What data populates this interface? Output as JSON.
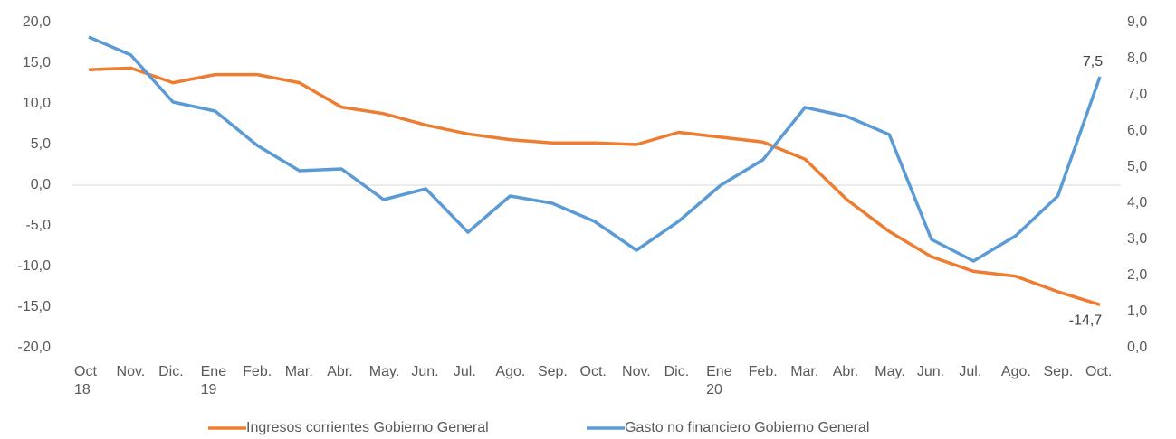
{
  "chart_data": {
    "type": "line",
    "categories": [
      "Oct\n18",
      "Nov.",
      "Dic.",
      "Ene\n19",
      "Feb.",
      "Mar.",
      "Abr.",
      "May.",
      "Jun.",
      "Jul.",
      "Ago.",
      "Sep.",
      "Oct.",
      "Nov.",
      "Dic.",
      "Ene\n20",
      "Feb.",
      "Mar.",
      "Abr.",
      "May.",
      "Jun.",
      "Jul.",
      "Ago.",
      "Sep.",
      "Oct."
    ],
    "series": [
      {
        "name": "Ingresos corrientes Gobierno General",
        "color": "#ed7d31",
        "values": [
          14.2,
          14.4,
          12.6,
          13.6,
          13.6,
          12.6,
          9.6,
          8.8,
          7.4,
          6.3,
          5.6,
          5.2,
          5.2,
          5.0,
          6.5,
          5.9,
          5.3,
          3.2,
          -1.8,
          -5.7,
          -8.8,
          -10.6,
          -11.2,
          -13.1,
          -14.7
        ],
        "value_labels": [
          null,
          null,
          null,
          null,
          null,
          null,
          null,
          null,
          null,
          null,
          null,
          null,
          null,
          null,
          null,
          null,
          null,
          null,
          null,
          null,
          null,
          null,
          null,
          null,
          "-14,7"
        ]
      },
      {
        "name": "Gasto no financiero Gobierno General",
        "color": "#5b9bd5",
        "axis": "y2",
        "values": [
          8.6,
          8.1,
          6.8,
          6.55,
          5.6,
          4.9,
          4.95,
          4.1,
          4.4,
          3.2,
          4.2,
          4.0,
          3.5,
          2.7,
          3.5,
          4.5,
          5.2,
          6.65,
          6.4,
          5.9,
          3.0,
          2.4,
          3.1,
          4.2,
          7.5
        ],
        "value_labels": [
          null,
          null,
          null,
          null,
          null,
          null,
          null,
          null,
          null,
          null,
          null,
          null,
          null,
          null,
          null,
          null,
          null,
          null,
          null,
          null,
          null,
          null,
          null,
          null,
          "7,5"
        ]
      }
    ],
    "ylim": [
      -20,
      20
    ],
    "yticks": [
      {
        "value": -20,
        "label": "-20,0"
      },
      {
        "value": -15,
        "label": "-15,0"
      },
      {
        "value": -10,
        "label": "-10,0"
      },
      {
        "value": -5,
        "label": "-5,0"
      },
      {
        "value": 0,
        "label": "0,0"
      },
      {
        "value": 5,
        "label": "5,0"
      },
      {
        "value": 10,
        "label": "10,0"
      },
      {
        "value": 15,
        "label": "15,0"
      },
      {
        "value": 20,
        "label": "20,0"
      }
    ],
    "y2lim": [
      0,
      9
    ],
    "y2ticks": [
      {
        "value": 0,
        "label": "0,0"
      },
      {
        "value": 1,
        "label": "1,0"
      },
      {
        "value": 2,
        "label": "2,0"
      },
      {
        "value": 3,
        "label": "3,0"
      },
      {
        "value": 4,
        "label": "4,0"
      },
      {
        "value": 5,
        "label": "5,0"
      },
      {
        "value": 6,
        "label": "6,0"
      },
      {
        "value": 7,
        "label": "7,0"
      },
      {
        "value": 8,
        "label": "8,0"
      },
      {
        "value": 9,
        "label": "9,0"
      }
    ],
    "legend": "bottom"
  }
}
